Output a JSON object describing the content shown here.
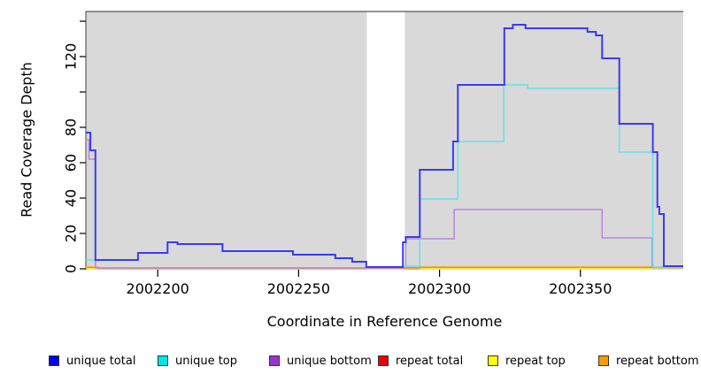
{
  "figure": {
    "x_axis_title": "Coordinate in Reference Genome",
    "y_axis_title": "Read Coverage Depth"
  },
  "legend": {
    "items": [
      {
        "label": "unique total",
        "color": "#0000ee"
      },
      {
        "label": "unique top",
        "color": "#00e5e5"
      },
      {
        "label": "unique bottom",
        "color": "#9933cc"
      },
      {
        "label": "repeat total",
        "color": "#ee0000"
      },
      {
        "label": "repeat top",
        "color": "#ffff00"
      },
      {
        "label": "repeat bottom",
        "color": "#ff9900"
      }
    ]
  },
  "chart_data": {
    "type": "line",
    "step": true,
    "title": "",
    "xlabel": "Coordinate in Reference Genome",
    "ylabel": "Read Coverage Depth",
    "xlim": [
      2002174.5,
      2002386.5
    ],
    "ylim": [
      0,
      145
    ],
    "grid": false,
    "legend_position": "bottom",
    "shaded_regions": [
      {
        "x1": 2002174.5,
        "x2": 2002274.2,
        "color": "#d9d9d9"
      },
      {
        "x1": 2002287.7,
        "x2": 2002386.5,
        "color": "#d9d9d9"
      }
    ],
    "x_ticks": [
      {
        "value": 2002200,
        "label": "2002200"
      },
      {
        "value": 2002250,
        "label": "2002250"
      },
      {
        "value": 2002300,
        "label": "2002300"
      },
      {
        "value": 2002350,
        "label": "2002350"
      }
    ],
    "y_ticks": [
      {
        "value": 0,
        "label": "0"
      },
      {
        "value": 20,
        "label": "20"
      },
      {
        "value": 40,
        "label": "40"
      },
      {
        "value": 60,
        "label": "60"
      },
      {
        "value": 80,
        "label": "80"
      },
      {
        "value": 100,
        "label": ""
      },
      {
        "value": 120,
        "label": "120"
      },
      {
        "value": 140,
        "label": ""
      }
    ],
    "series": [
      {
        "name": "repeat total",
        "color": "#e05575",
        "width": 1.3,
        "points": [
          [
            2002174.5,
            0.5
          ],
          [
            2002386.5,
            0.5
          ]
        ]
      },
      {
        "name": "repeat top",
        "color": "#eeee22",
        "width": 1.3,
        "points": [
          [
            2002174.5,
            0.2
          ],
          [
            2002386.5,
            0.2
          ]
        ]
      },
      {
        "name": "repeat bottom",
        "color": "#ff9922",
        "width": 1.5,
        "points": [
          [
            2002174.5,
            1
          ],
          [
            2002178.8,
            0.15
          ],
          [
            2002293,
            1
          ],
          [
            2002386.5,
            1
          ]
        ]
      },
      {
        "name": "unique bottom",
        "color": "#bb85dd",
        "width": 1.5,
        "points": [
          [
            2002174.5,
            73
          ],
          [
            2002175.6,
            62
          ],
          [
            2002177.9,
            0.5
          ],
          [
            2002288,
            17
          ],
          [
            2002305.2,
            33.5
          ],
          [
            2002357.7,
            17.5
          ],
          [
            2002375.4,
            0.7
          ],
          [
            2002386.5,
            0.7
          ]
        ]
      },
      {
        "name": "unique top",
        "color": "#63e3ec",
        "width": 1.5,
        "points": [
          [
            2002174.5,
            5
          ],
          [
            2002177.9,
            5
          ],
          [
            2002193,
            9
          ],
          [
            2002203.5,
            15
          ],
          [
            2002207,
            14
          ],
          [
            2002223,
            10
          ],
          [
            2002248,
            8
          ],
          [
            2002263,
            6
          ],
          [
            2002269,
            4
          ],
          [
            2002274,
            1
          ],
          [
            2002287,
            1.5
          ],
          [
            2002293,
            39.5
          ],
          [
            2002306.5,
            72
          ],
          [
            2002322.8,
            104
          ],
          [
            2002331.3,
            102
          ],
          [
            2002363.8,
            66
          ],
          [
            2002375.7,
            1
          ],
          [
            2002386.5,
            1
          ]
        ]
      },
      {
        "name": "unique total",
        "color": "#3a3af2",
        "width": 2,
        "points": [
          [
            2002174.5,
            77
          ],
          [
            2002176.1,
            67
          ],
          [
            2002177.9,
            5
          ],
          [
            2002193,
            9
          ],
          [
            2002203.5,
            15
          ],
          [
            2002207,
            14
          ],
          [
            2002223,
            10
          ],
          [
            2002248,
            8
          ],
          [
            2002263,
            6
          ],
          [
            2002269,
            4
          ],
          [
            2002274,
            1
          ],
          [
            2002287,
            15
          ],
          [
            2002288,
            18
          ],
          [
            2002293,
            56
          ],
          [
            2002304.8,
            72
          ],
          [
            2002306.5,
            104
          ],
          [
            2002323,
            136
          ],
          [
            2002326,
            138
          ],
          [
            2002330.5,
            136
          ],
          [
            2002352.5,
            134
          ],
          [
            2002355.5,
            132
          ],
          [
            2002357.7,
            119
          ],
          [
            2002363.8,
            82
          ],
          [
            2002375.7,
            66
          ],
          [
            2002377.3,
            35
          ],
          [
            2002378,
            31
          ],
          [
            2002379.6,
            1.5
          ],
          [
            2002386.5,
            1.5
          ]
        ]
      }
    ]
  }
}
